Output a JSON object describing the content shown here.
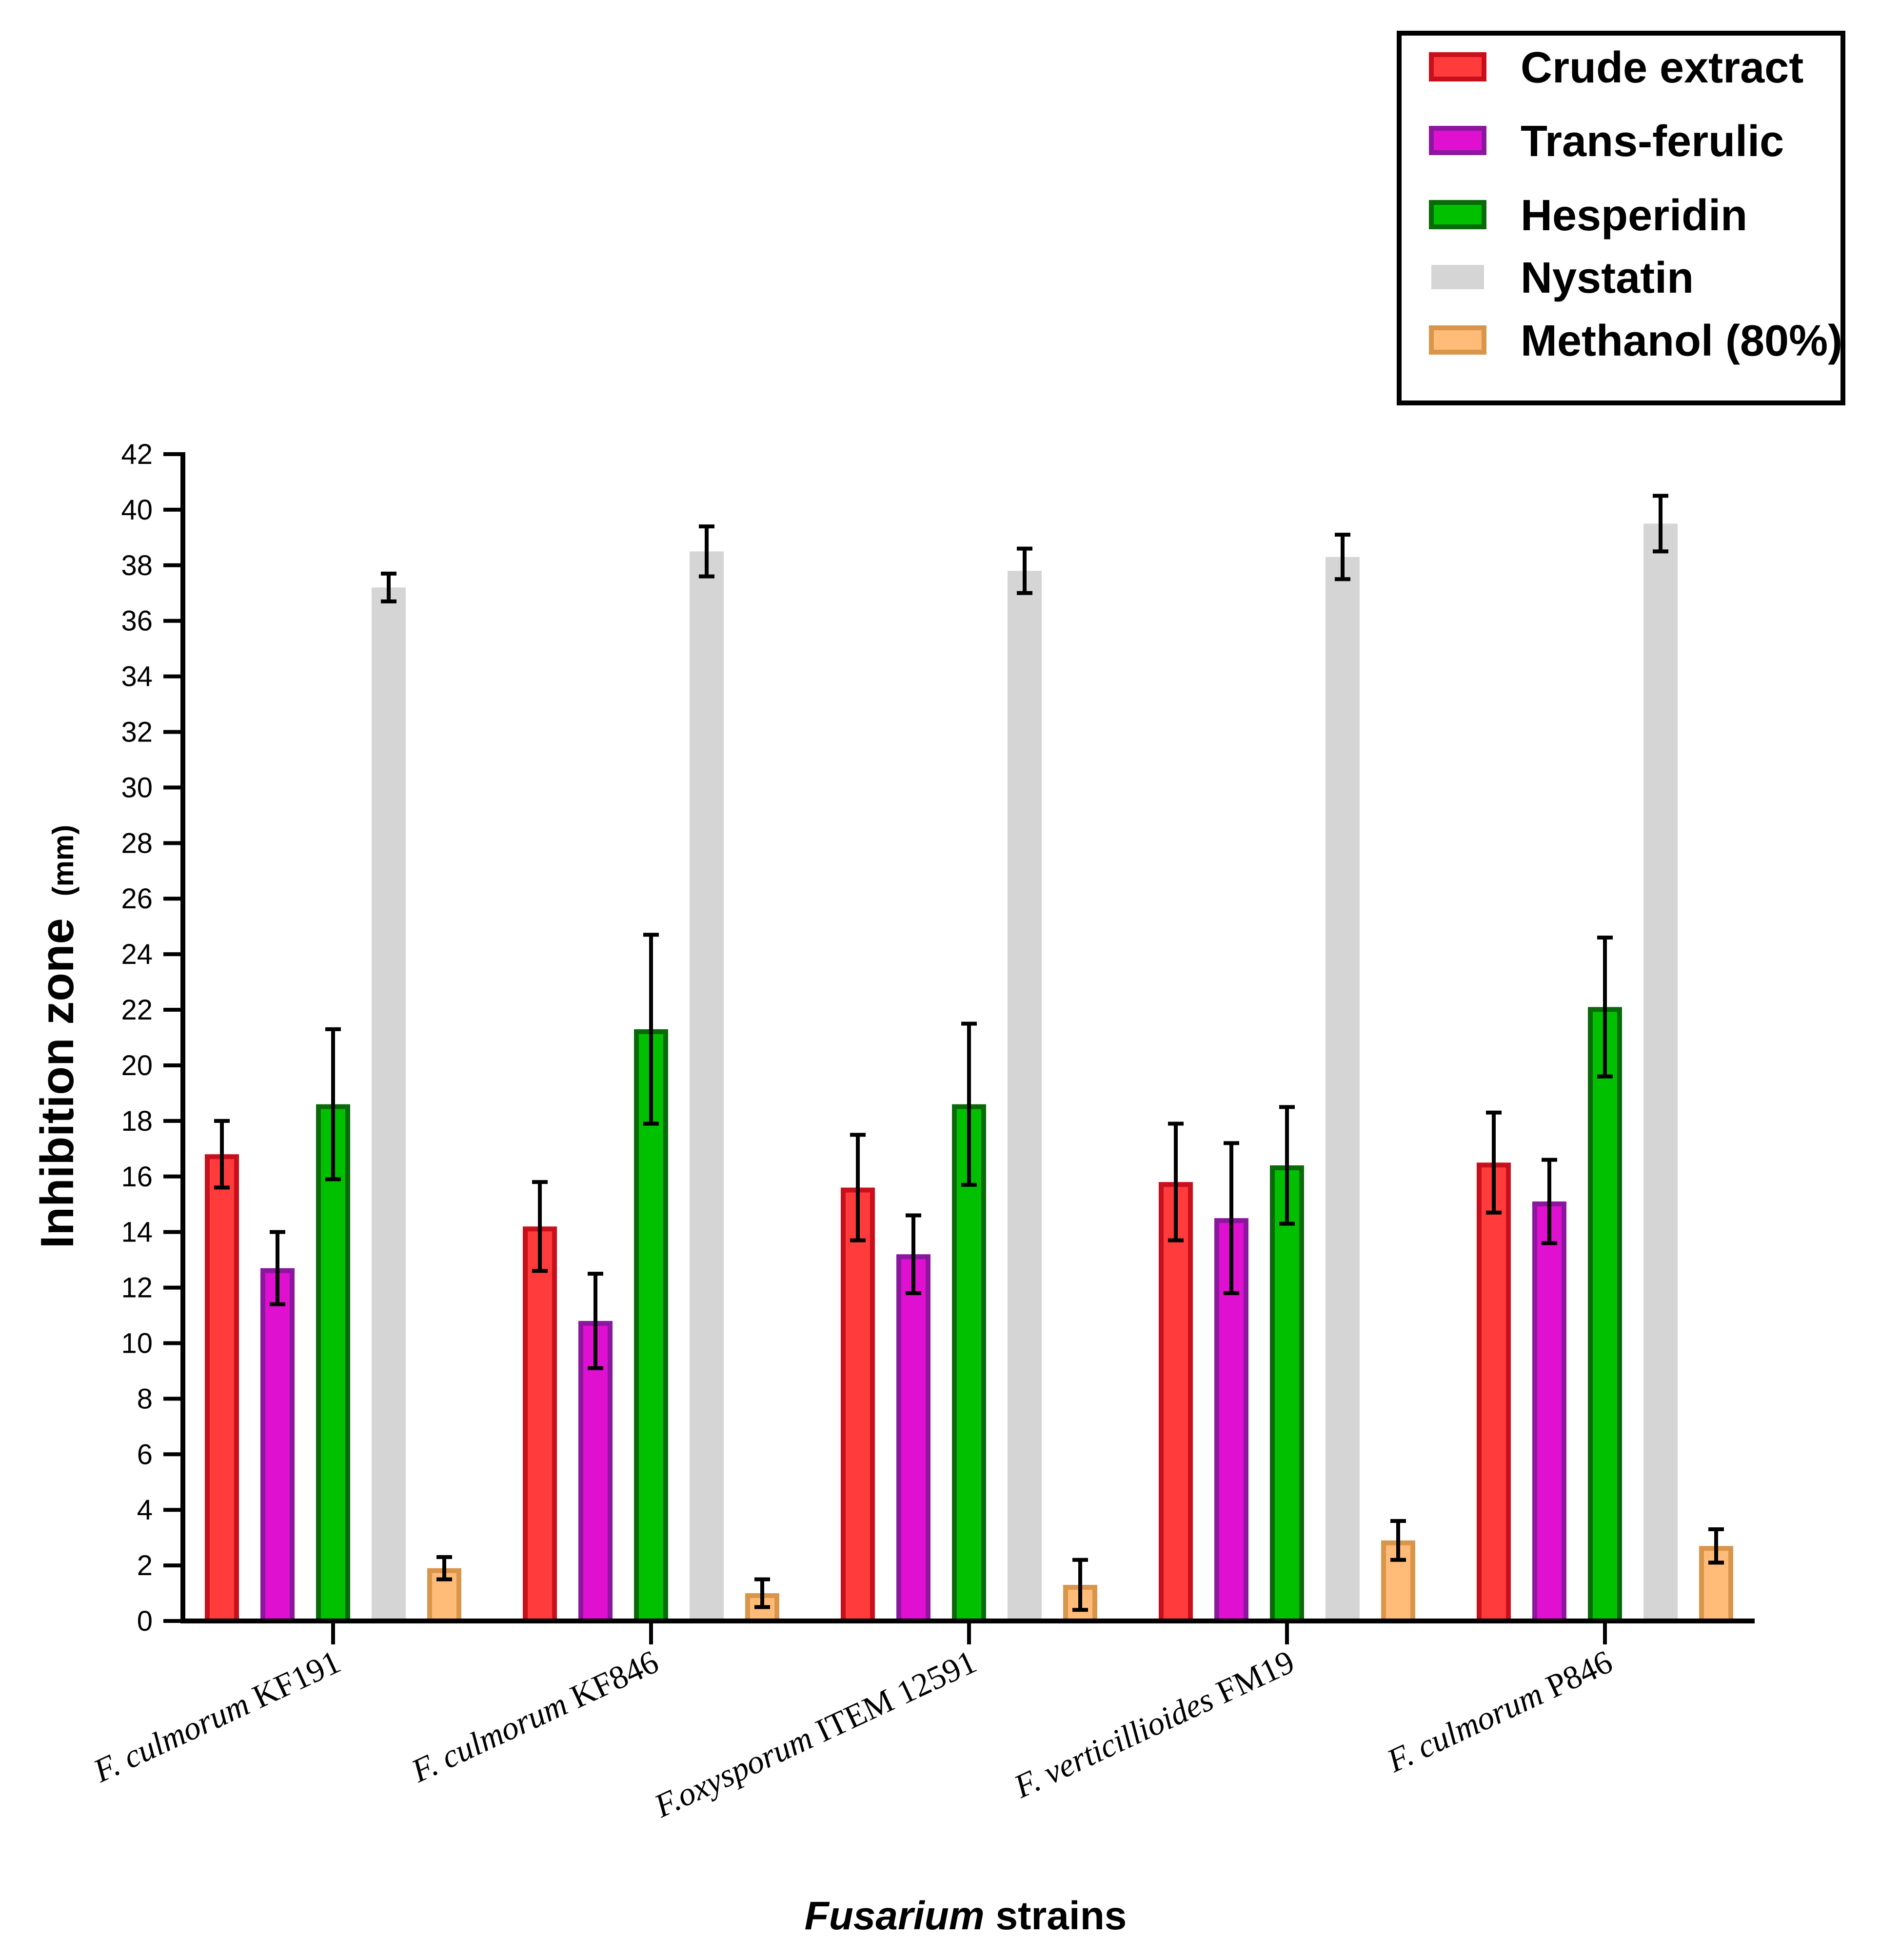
{
  "chart_data": {
    "type": "bar",
    "title": "",
    "xlabel": {
      "italic_part": "Fusarium",
      "rest": " strains"
    },
    "ylabel": {
      "main": "Inhibition zone",
      "unit": "(mm)"
    },
    "ylim": [
      0,
      42
    ],
    "ytick_step": 2,
    "yticks": [
      "0",
      "2",
      "4",
      "6",
      "8",
      "10",
      "12",
      "14",
      "16",
      "18",
      "20",
      "22",
      "24",
      "26",
      "28",
      "30",
      "32",
      "34",
      "36",
      "38",
      "40",
      "42"
    ],
    "categories": [
      {
        "italic": "F. culmorum",
        "rest": " KF191"
      },
      {
        "italic": "F. culmorum",
        "rest": " KF846"
      },
      {
        "italic": "F.oxysporum",
        "rest": " ITEM 12591"
      },
      {
        "italic": "F. verticillioides",
        "rest": " FM19"
      },
      {
        "italic": "F. culmorum",
        "rest": " P846"
      }
    ],
    "series": [
      {
        "name": "Crude extract",
        "fill": "#ff3b3b",
        "stroke": "#c8101c",
        "values": [
          16.8,
          14.2,
          15.6,
          15.8,
          16.5
        ],
        "errors": [
          1.2,
          1.6,
          1.9,
          2.1,
          1.8
        ]
      },
      {
        "name": "Trans-ferulic",
        "fill": "#e010d0",
        "stroke": "#8b179e",
        "values": [
          12.7,
          10.8,
          13.2,
          14.5,
          15.1
        ],
        "errors": [
          1.3,
          1.7,
          1.4,
          2.7,
          1.5
        ]
      },
      {
        "name": "Hesperidin",
        "fill": "#00c000",
        "stroke": "#0a6a0a",
        "values": [
          18.6,
          21.3,
          18.6,
          16.4,
          22.1
        ],
        "errors": [
          2.7,
          3.4,
          2.9,
          2.1,
          2.5
        ]
      },
      {
        "name": "Nystatin",
        "fill": "#d5d5d5",
        "stroke": "#d5d5d5",
        "values": [
          37.2,
          38.5,
          37.8,
          38.3,
          39.5
        ],
        "errors": [
          0.5,
          0.9,
          0.8,
          0.8,
          1.0
        ]
      },
      {
        "name": "Methanol (80%)",
        "fill": "#ffbb77",
        "stroke": "#d9954a",
        "values": [
          1.9,
          1.0,
          1.3,
          2.9,
          2.7
        ],
        "errors": [
          0.4,
          0.5,
          0.9,
          0.7,
          0.6
        ]
      }
    ],
    "legend": {
      "position": "top-right"
    }
  }
}
